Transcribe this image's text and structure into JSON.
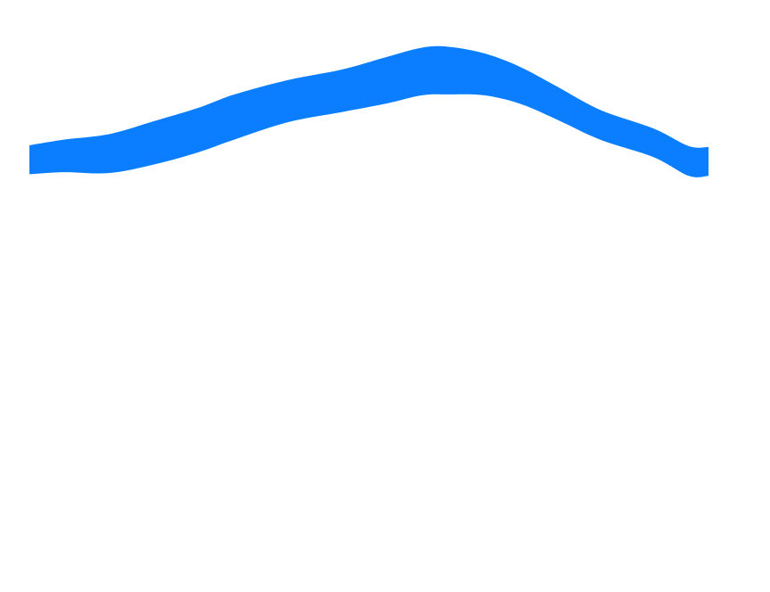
{
  "chart_data": {
    "type": "area",
    "title": "",
    "xlabel": "",
    "ylabel": "",
    "grid": false,
    "legend": "none",
    "xlim": [
      0,
      1
    ],
    "ylim": [
      0,
      1
    ],
    "series": [
      {
        "color": "#0a7eff",
        "points": [
          {
            "x": 0.0,
            "lower": 0.502,
            "upper": 0.602
          },
          {
            "x": 0.052,
            "lower": 0.509,
            "upper": 0.622
          },
          {
            "x": 0.118,
            "lower": 0.506,
            "upper": 0.641
          },
          {
            "x": 0.184,
            "lower": 0.536,
            "upper": 0.686
          },
          {
            "x": 0.249,
            "lower": 0.578,
            "upper": 0.732
          },
          {
            "x": 0.302,
            "lower": 0.622,
            "upper": 0.778
          },
          {
            "x": 0.381,
            "lower": 0.682,
            "upper": 0.828
          },
          {
            "x": 0.46,
            "lower": 0.717,
            "upper": 0.864
          },
          {
            "x": 0.525,
            "lower": 0.746,
            "upper": 0.907
          },
          {
            "x": 0.578,
            "lower": 0.775,
            "upper": 0.94
          },
          {
            "x": 0.617,
            "lower": 0.778,
            "upper": 0.943
          },
          {
            "x": 0.67,
            "lower": 0.775,
            "upper": 0.92
          },
          {
            "x": 0.722,
            "lower": 0.746,
            "upper": 0.874
          },
          {
            "x": 0.775,
            "lower": 0.693,
            "upper": 0.808
          },
          {
            "x": 0.84,
            "lower": 0.622,
            "upper": 0.725
          },
          {
            "x": 0.919,
            "lower": 0.561,
            "upper": 0.66
          },
          {
            "x": 0.971,
            "lower": 0.496,
            "upper": 0.599
          },
          {
            "x": 1.0,
            "lower": 0.496,
            "upper": 0.596
          }
        ]
      }
    ]
  }
}
